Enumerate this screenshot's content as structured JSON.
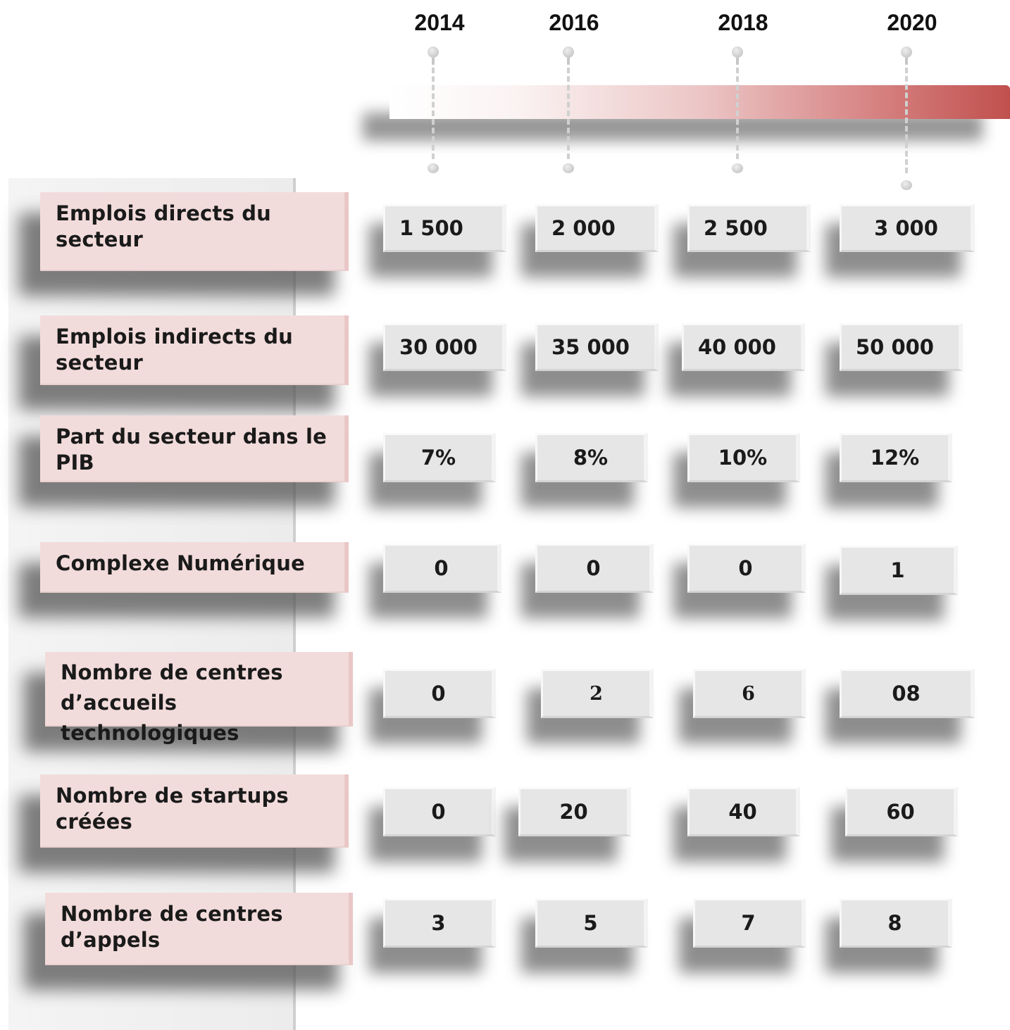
{
  "years": [
    "2014",
    "2016",
    "2018",
    "2020"
  ],
  "rows": [
    {
      "label": "Emplois  directs du secteur",
      "values": [
        "1 500",
        "2 000",
        "2 500",
        "3 000"
      ]
    },
    {
      "label": "Emplois indirects  du secteur",
      "values": [
        "30 000",
        "35 000",
        "40 000",
        "50 000"
      ]
    },
    {
      "label": "Part du secteur dans le PIB",
      "values": [
        "7%",
        "8%",
        "10%",
        "12%"
      ]
    },
    {
      "label": "Complexe Numérique",
      "values": [
        "0",
        "0",
        "0",
        "1"
      ]
    },
    {
      "label": "Nombre de centres d’accueils technologiques",
      "values": [
        "0",
        "2",
        "6",
        "08"
      ]
    },
    {
      "label": "Nombre de startups créées",
      "values": [
        "0",
        "20",
        "40",
        "60"
      ]
    },
    {
      "label": "Nombre  de centres d’appels",
      "values": [
        "3",
        "5",
        "7",
        "8"
      ]
    }
  ],
  "colors": {
    "label_fill": "#f2dcdb",
    "cell_fill": "#e6e6e6",
    "timeline_end": "#c0504d"
  }
}
